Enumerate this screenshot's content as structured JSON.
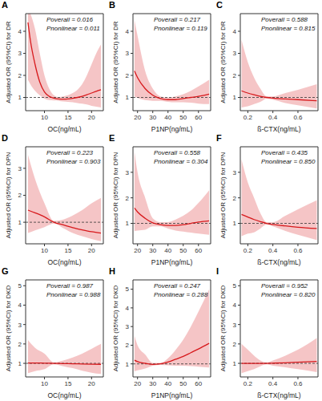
{
  "chart_data": [
    {
      "type": "line",
      "title": "A",
      "annotations": [
        "Poverall = 0.016",
        "Pnonlinear = 0.011"
      ],
      "x_label": "OC(ng/mL)",
      "y_label": "Adjusted OR (95%CI) for DR",
      "color": "#d7191c",
      "hline": 1,
      "x": [
        6.5,
        7,
        8,
        9,
        10,
        11,
        12,
        13,
        14,
        15,
        16,
        17,
        18,
        19,
        20,
        21,
        22
      ],
      "values": [
        4.4,
        3.6,
        2.5,
        1.7,
        1.25,
        1.05,
        0.97,
        0.93,
        0.92,
        0.93,
        0.96,
        1.0,
        1.05,
        1.12,
        1.2,
        1.28,
        1.35
      ],
      "ci_lower": [
        1.8,
        1.6,
        1.3,
        1.1,
        0.95,
        0.88,
        0.86,
        0.85,
        0.82,
        0.8,
        0.78,
        0.75,
        0.72,
        0.68,
        0.62,
        0.58,
        0.55
      ],
      "ci_upper": [
        5.0,
        4.8,
        4.1,
        3.0,
        2.0,
        1.4,
        1.1,
        1.02,
        1.05,
        1.1,
        1.2,
        1.35,
        1.6,
        2.0,
        2.5,
        3.0,
        3.4
      ],
      "xlim": [
        6,
        22.5
      ],
      "xticks": [
        10,
        15,
        20
      ],
      "ylim": [
        0.4,
        4.8
      ],
      "yticks": [
        1,
        2,
        3,
        4
      ]
    },
    {
      "type": "line",
      "title": "B",
      "annotations": [
        "Poverall = 0.217",
        "Pnonlinear = 0.119"
      ],
      "x_label": "P1NP(ng/mL)",
      "y_label": "Adjusted OR (95%CI) for DR",
      "color": "#d7191c",
      "hline": 1,
      "x": [
        18,
        20,
        25,
        30,
        35,
        40,
        45,
        50,
        55,
        60,
        67
      ],
      "values": [
        2.2,
        1.9,
        1.4,
        1.1,
        0.95,
        0.9,
        0.9,
        0.95,
        1.0,
        1.05,
        1.15
      ],
      "ci_lower": [
        1.05,
        0.98,
        0.88,
        0.85,
        0.85,
        0.8,
        0.78,
        0.78,
        0.76,
        0.72,
        0.7
      ],
      "ci_upper": [
        4.5,
        3.8,
        2.2,
        1.4,
        1.05,
        1.0,
        1.05,
        1.15,
        1.3,
        1.5,
        1.8
      ],
      "xlim": [
        17,
        68
      ],
      "xticks": [
        20,
        30,
        40,
        50,
        60
      ],
      "ylim": [
        0.4,
        4.8
      ],
      "yticks": [
        1,
        2,
        3,
        4
      ]
    },
    {
      "type": "line",
      "title": "C",
      "annotations": [
        "Poverall = 0.588",
        "Pnonlinear = 0.815"
      ],
      "x_label": "ß-CTX(ng/mL)",
      "y_label": "Adjusted OR (95%CI) for DR",
      "color": "#d7191c",
      "hline": 1,
      "x": [
        0.15,
        0.2,
        0.25,
        0.3,
        0.35,
        0.4,
        0.5,
        0.6,
        0.75
      ],
      "values": [
        1.3,
        1.2,
        1.12,
        1.05,
        1.0,
        0.97,
        0.93,
        0.9,
        0.85
      ],
      "ci_lower": [
        0.55,
        0.6,
        0.7,
        0.8,
        0.95,
        0.9,
        0.75,
        0.65,
        0.5
      ],
      "ci_upper": [
        3.6,
        2.6,
        1.9,
        1.4,
        1.05,
        1.05,
        1.2,
        1.35,
        1.6
      ],
      "xlim": [
        0.14,
        0.76
      ],
      "xticks": [
        0.2,
        0.4,
        0.6
      ],
      "ylim": [
        0.4,
        4.8
      ],
      "yticks": [
        1,
        2,
        3,
        4
      ]
    },
    {
      "type": "line",
      "title": "D",
      "annotations": [
        "Poverall = 0.223",
        "Pnonlinear = 0.903"
      ],
      "x_label": "OC(ng/mL)",
      "y_label": "Adjusted OR (95%CI) for DPN",
      "color": "#d7191c",
      "hline": 1,
      "x": [
        6.5,
        8,
        10,
        12,
        14,
        16,
        18,
        20,
        22
      ],
      "values": [
        1.45,
        1.35,
        1.2,
        1.0,
        0.9,
        0.8,
        0.72,
        0.65,
        0.6
      ],
      "ci_lower": [
        0.6,
        0.7,
        0.82,
        0.95,
        0.78,
        0.6,
        0.48,
        0.38,
        0.3
      ],
      "ci_upper": [
        3.5,
        2.6,
        1.7,
        1.05,
        1.1,
        1.25,
        1.45,
        1.7,
        1.9
      ],
      "xlim": [
        6,
        22.5
      ],
      "xticks": [
        10,
        15,
        20
      ],
      "ylim": [
        0.2,
        3.8
      ],
      "yticks": [
        1,
        2,
        3
      ]
    },
    {
      "type": "line",
      "title": "E",
      "annotations": [
        "Poverall = 0.558",
        "Pnonlinear = 0.304"
      ],
      "x_label": "P1NP(ng/mL)",
      "y_label": "Adjusted OR (95%CI) for DPN",
      "color": "#d7191c",
      "hline": 1,
      "x": [
        18,
        20,
        25,
        30,
        35,
        40,
        45,
        50,
        55,
        60,
        67
      ],
      "values": [
        1.6,
        1.45,
        1.2,
        1.02,
        0.95,
        0.92,
        0.92,
        0.95,
        1.0,
        1.05,
        1.1
      ],
      "ci_lower": [
        0.7,
        0.72,
        0.75,
        0.88,
        0.88,
        0.8,
        0.72,
        0.68,
        0.64,
        0.6,
        0.55
      ],
      "ci_upper": [
        3.8,
        3.0,
        2.0,
        1.2,
        1.05,
        1.05,
        1.15,
        1.3,
        1.5,
        1.8,
        2.3
      ],
      "xlim": [
        17,
        68
      ],
      "xticks": [
        20,
        30,
        40,
        50,
        60
      ],
      "ylim": [
        0.2,
        4
      ],
      "yticks": [
        1,
        2,
        3
      ]
    },
    {
      "type": "line",
      "title": "F",
      "annotations": [
        "Poverall = 0.435",
        "Pnonlinear = 0.850"
      ],
      "x_label": "ß-CTX(ng/mL)",
      "y_label": "Adjusted OR (95%CI) for DPN",
      "color": "#d7191c",
      "hline": 1,
      "x": [
        0.15,
        0.2,
        0.25,
        0.3,
        0.35,
        0.4,
        0.5,
        0.6,
        0.75
      ],
      "values": [
        1.35,
        1.25,
        1.15,
        1.07,
        1.0,
        0.96,
        0.9,
        0.85,
        0.8
      ],
      "ci_lower": [
        0.5,
        0.6,
        0.65,
        0.8,
        0.95,
        0.88,
        0.7,
        0.55,
        0.35
      ],
      "ci_upper": [
        3.5,
        2.6,
        2.0,
        1.4,
        1.05,
        1.05,
        1.3,
        1.55,
        1.9
      ],
      "xlim": [
        0.14,
        0.76
      ],
      "xticks": [
        0.2,
        0.4,
        0.6
      ],
      "ylim": [
        0.2,
        4
      ],
      "yticks": [
        1,
        2,
        3
      ]
    },
    {
      "type": "line",
      "title": "G",
      "annotations": [
        "Poverall = 0.987",
        "Pnonlinear = 0.988"
      ],
      "x_label": "OC(ng/mL)",
      "y_label": "Adjusted OR (95%CI) for DKD",
      "color": "#d7191c",
      "hline": 1,
      "x": [
        6.5,
        8,
        10,
        12,
        14,
        16,
        18,
        20,
        22
      ],
      "values": [
        1.02,
        1.02,
        1.01,
        1.0,
        0.99,
        0.98,
        0.97,
        0.96,
        0.95
      ],
      "ci_lower": [
        0.5,
        0.6,
        0.7,
        0.95,
        0.85,
        0.75,
        0.62,
        0.52,
        0.45
      ],
      "ci_upper": [
        2.2,
        1.8,
        1.5,
        1.05,
        1.15,
        1.3,
        1.5,
        1.75,
        2.0
      ],
      "xlim": [
        6,
        22.5
      ],
      "xticks": [
        10,
        15,
        20
      ],
      "ylim": [
        0.3,
        5.3
      ],
      "yticks": [
        1,
        2,
        3,
        4,
        5
      ]
    },
    {
      "type": "line",
      "title": "H",
      "annotations": [
        "Poverall = 0.247",
        "Pnonlinear = 0.288"
      ],
      "x_label": "P1NP(ng/mL)",
      "y_label": "Adjusted OR (95%CI) for DKD",
      "color": "#d7191c",
      "hline": 1,
      "x": [
        18,
        20,
        25,
        30,
        35,
        40,
        45,
        50,
        55,
        60,
        67
      ],
      "values": [
        1.2,
        1.12,
        1.03,
        0.97,
        1.0,
        1.1,
        1.25,
        1.4,
        1.6,
        1.8,
        2.1
      ],
      "ci_lower": [
        0.6,
        0.65,
        0.75,
        0.9,
        0.95,
        0.92,
        0.9,
        0.9,
        0.88,
        0.85,
        0.8
      ],
      "ci_upper": [
        2.5,
        2.0,
        1.5,
        1.05,
        1.05,
        1.3,
        1.75,
        2.3,
        3.0,
        3.8,
        5.0
      ],
      "xlim": [
        17,
        68
      ],
      "xticks": [
        20,
        30,
        40,
        50,
        60
      ],
      "ylim": [
        0.3,
        5.5
      ],
      "yticks": [
        1,
        2,
        3,
        4,
        5
      ]
    },
    {
      "type": "line",
      "title": "I",
      "annotations": [
        "Poverall = 0.952",
        "Pnonlinear = 0.820"
      ],
      "x_label": "ß-CTX(ng/mL)",
      "y_label": "Adjusted OR (95%CI) for DKD",
      "color": "#d7191c",
      "hline": 1,
      "x": [
        0.15,
        0.2,
        0.25,
        0.3,
        0.35,
        0.4,
        0.5,
        0.6,
        0.75
      ],
      "values": [
        1.0,
        1.0,
        1.0,
        1.0,
        1.0,
        1.01,
        1.03,
        1.06,
        1.1
      ],
      "ci_lower": [
        0.5,
        0.6,
        0.7,
        0.85,
        0.95,
        0.88,
        0.8,
        0.7,
        0.55
      ],
      "ci_upper": [
        2.0,
        1.7,
        1.4,
        1.15,
        1.05,
        1.15,
        1.4,
        1.7,
        2.3
      ],
      "xlim": [
        0.14,
        0.76
      ],
      "xticks": [
        0.2,
        0.4,
        0.6
      ],
      "ylim": [
        0.3,
        5.3
      ],
      "yticks": [
        1,
        2,
        3,
        4,
        5
      ]
    }
  ]
}
